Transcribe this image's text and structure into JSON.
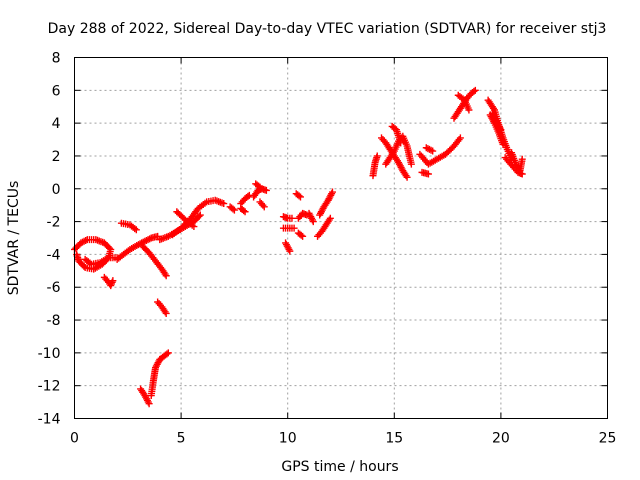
{
  "chart_data": {
    "type": "scatter",
    "title": "Day 288 of 2022, Sidereal Day-to-day VTEC variation (SDTVAR) for receiver stj3",
    "xlabel": "GPS time / hours",
    "ylabel": "SDTVAR / TECUs",
    "xlim": [
      0,
      25
    ],
    "ylim": [
      -14,
      8
    ],
    "x_ticks": [
      "0",
      "5",
      "10",
      "15",
      "20",
      "25"
    ],
    "y_ticks": [
      "-14",
      "-12",
      "-10",
      "-8",
      "-6",
      "-4",
      "-2",
      "0",
      "2",
      "4",
      "6",
      "8"
    ],
    "grid": true,
    "marker": "+",
    "color": "#ff0000",
    "series": [
      {
        "name": "SDTVAR",
        "segments": [
          [
            [
              0.0,
              -3.7
            ],
            [
              0.3,
              -3.3
            ],
            [
              0.6,
              -3.1
            ],
            [
              1.0,
              -3.1
            ],
            [
              1.4,
              -3.3
            ],
            [
              1.7,
              -3.7
            ],
            [
              1.6,
              -4.2
            ],
            [
              1.3,
              -4.6
            ],
            [
              0.9,
              -4.9
            ],
            [
              0.5,
              -4.8
            ],
            [
              0.2,
              -4.4
            ],
            [
              0.1,
              -4.0
            ]
          ],
          [
            [
              0.5,
              -4.3
            ],
            [
              0.8,
              -4.6
            ],
            [
              1.2,
              -4.5
            ],
            [
              1.6,
              -4.2
            ],
            [
              2.0,
              -4.2
            ]
          ],
          [
            [
              1.4,
              -5.4
            ],
            [
              1.6,
              -5.7
            ],
            [
              1.7,
              -5.9
            ],
            [
              1.8,
              -5.6
            ]
          ],
          [
            [
              2.0,
              -4.3
            ],
            [
              2.3,
              -4.0
            ],
            [
              2.6,
              -3.7
            ],
            [
              3.0,
              -3.4
            ],
            [
              3.3,
              -3.2
            ],
            [
              3.6,
              -3.0
            ],
            [
              3.9,
              -2.9
            ]
          ],
          [
            [
              2.2,
              -2.1
            ],
            [
              2.6,
              -2.2
            ],
            [
              2.9,
              -2.5
            ]
          ],
          [
            [
              3.2,
              -3.5
            ],
            [
              3.5,
              -3.9
            ],
            [
              3.8,
              -4.4
            ],
            [
              4.1,
              -4.9
            ],
            [
              4.3,
              -5.3
            ]
          ],
          [
            [
              3.9,
              -6.9
            ],
            [
              4.1,
              -7.2
            ],
            [
              4.3,
              -7.6
            ]
          ],
          [
            [
              3.1,
              -12.2
            ],
            [
              3.3,
              -12.6
            ],
            [
              3.5,
              -13.1
            ]
          ],
          [
            [
              3.6,
              -12.6
            ],
            [
              3.7,
              -11.7
            ],
            [
              3.8,
              -10.9
            ],
            [
              4.0,
              -10.4
            ],
            [
              4.2,
              -10.2
            ],
            [
              4.4,
              -10.0
            ]
          ],
          [
            [
              4.0,
              -3.1
            ],
            [
              4.4,
              -2.9
            ],
            [
              4.8,
              -2.6
            ],
            [
              5.2,
              -2.3
            ],
            [
              5.6,
              -2.0
            ],
            [
              5.9,
              -1.6
            ]
          ],
          [
            [
              4.6,
              -2.8
            ],
            [
              5.0,
              -2.4
            ],
            [
              5.4,
              -1.9
            ],
            [
              5.8,
              -1.2
            ],
            [
              6.2,
              -0.8
            ],
            [
              6.6,
              -0.7
            ],
            [
              7.0,
              -0.9
            ]
          ],
          [
            [
              4.8,
              -1.4
            ],
            [
              5.2,
              -1.9
            ],
            [
              5.6,
              -2.3
            ]
          ],
          [
            [
              7.3,
              -1.1
            ],
            [
              7.5,
              -1.3
            ]
          ],
          [
            [
              7.8,
              -0.9
            ],
            [
              8.0,
              -0.6
            ],
            [
              8.2,
              -0.4
            ]
          ],
          [
            [
              7.8,
              -1.2
            ],
            [
              8.0,
              -1.4
            ]
          ],
          [
            [
              8.4,
              -0.5
            ],
            [
              8.6,
              -0.1
            ],
            [
              8.8,
              0.0
            ],
            [
              9.0,
              -0.1
            ]
          ],
          [
            [
              8.5,
              0.3
            ],
            [
              8.7,
              0.1
            ]
          ],
          [
            [
              8.7,
              -0.8
            ],
            [
              8.9,
              -1.1
            ]
          ],
          [
            [
              9.8,
              -1.7
            ],
            [
              10.0,
              -1.8
            ],
            [
              10.2,
              -1.8
            ]
          ],
          [
            [
              9.8,
              -2.4
            ],
            [
              10.1,
              -2.4
            ],
            [
              10.3,
              -2.4
            ]
          ],
          [
            [
              9.9,
              -3.3
            ],
            [
              10.1,
              -3.8
            ]
          ],
          [
            [
              10.4,
              -0.3
            ],
            [
              10.6,
              -0.5
            ]
          ],
          [
            [
              10.5,
              -1.8
            ],
            [
              10.7,
              -1.5
            ],
            [
              10.9,
              -1.6
            ]
          ],
          [
            [
              10.5,
              -2.7
            ],
            [
              10.7,
              -2.9
            ]
          ],
          [
            [
              11.0,
              -1.5
            ],
            [
              11.2,
              -2.0
            ]
          ],
          [
            [
              11.4,
              -2.9
            ],
            [
              11.6,
              -2.6
            ],
            [
              11.8,
              -2.2
            ],
            [
              12.0,
              -1.8
            ]
          ],
          [
            [
              11.5,
              -1.6
            ],
            [
              11.7,
              -1.1
            ],
            [
              11.9,
              -0.7
            ],
            [
              12.1,
              -0.2
            ]
          ],
          [
            [
              14.0,
              0.8
            ],
            [
              14.1,
              1.6
            ],
            [
              14.2,
              2.0
            ]
          ],
          [
            [
              14.4,
              3.1
            ],
            [
              14.6,
              2.8
            ],
            [
              14.8,
              2.4
            ],
            [
              15.0,
              2.0
            ],
            [
              15.2,
              1.6
            ],
            [
              15.4,
              1.1
            ],
            [
              15.6,
              0.7
            ]
          ],
          [
            [
              14.6,
              1.5
            ],
            [
              14.8,
              1.9
            ],
            [
              15.0,
              2.3
            ],
            [
              15.2,
              2.9
            ],
            [
              15.4,
              3.2
            ],
            [
              15.6,
              2.6
            ],
            [
              15.8,
              1.5
            ]
          ],
          [
            [
              14.9,
              3.8
            ],
            [
              15.1,
              3.6
            ],
            [
              15.3,
              2.8
            ]
          ],
          [
            [
              16.2,
              2.1
            ],
            [
              16.6,
              1.5
            ],
            [
              17.0,
              1.8
            ],
            [
              17.4,
              2.1
            ],
            [
              17.8,
              2.6
            ],
            [
              18.1,
              3.1
            ]
          ],
          [
            [
              16.5,
              2.5
            ],
            [
              16.8,
              2.3
            ]
          ],
          [
            [
              16.3,
              1.0
            ],
            [
              16.6,
              0.9
            ]
          ],
          [
            [
              17.8,
              4.3
            ],
            [
              18.0,
              4.7
            ],
            [
              18.2,
              5.1
            ],
            [
              18.4,
              5.5
            ],
            [
              18.6,
              5.8
            ],
            [
              18.8,
              6.0
            ]
          ],
          [
            [
              18.0,
              5.7
            ],
            [
              18.3,
              5.4
            ],
            [
              18.5,
              4.8
            ]
          ],
          [
            [
              19.4,
              5.4
            ],
            [
              19.7,
              4.8
            ],
            [
              19.9,
              3.9
            ],
            [
              20.1,
              3.1
            ],
            [
              20.3,
              2.4
            ],
            [
              20.5,
              1.8
            ]
          ],
          [
            [
              19.5,
              4.5
            ],
            [
              19.7,
              4.0
            ],
            [
              19.9,
              3.4
            ],
            [
              20.1,
              2.7
            ]
          ],
          [
            [
              19.6,
              4.6
            ],
            [
              19.8,
              4.1
            ],
            [
              20.0,
              3.6
            ]
          ],
          [
            [
              20.2,
              1.9
            ],
            [
              20.4,
              1.6
            ],
            [
              20.6,
              1.3
            ],
            [
              20.8,
              1.0
            ],
            [
              21.0,
              0.9
            ]
          ],
          [
            [
              20.5,
              2.2
            ],
            [
              20.7,
              1.5
            ],
            [
              20.9,
              1.1
            ],
            [
              21.0,
              1.8
            ]
          ]
        ]
      }
    ]
  }
}
